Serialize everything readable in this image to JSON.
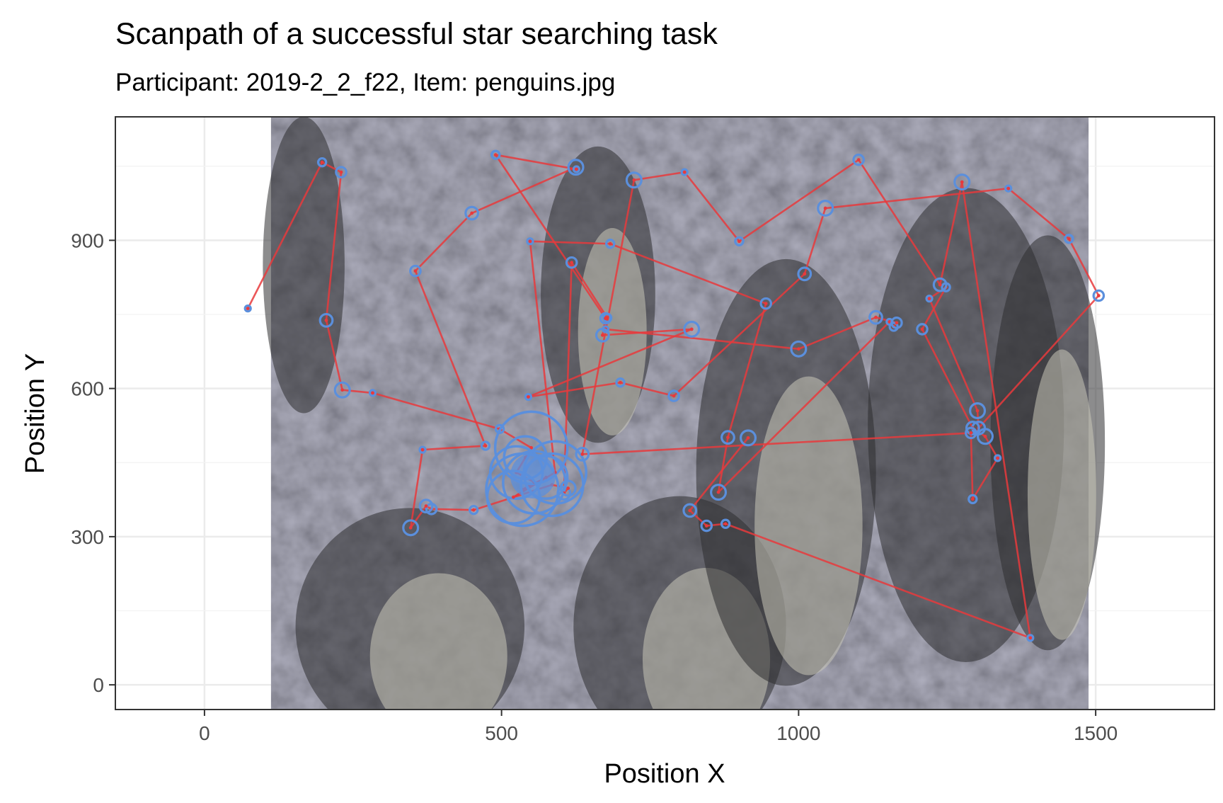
{
  "chart_data": {
    "type": "scatter",
    "title": "Scanpath of a successful star searching task",
    "subtitle": "Participant: 2019-2_2_f22, Item: penguins.jpg",
    "xlabel": "Position X",
    "ylabel": "Position Y",
    "xlim": [
      -150,
      1700
    ],
    "ylim": [
      -50,
      1150
    ],
    "x_ticks": [
      0,
      500,
      1000,
      1500
    ],
    "y_ticks": [
      0,
      300,
      600,
      900
    ],
    "x_tick_labels": [
      "0",
      "500",
      "1000",
      "1500"
    ],
    "y_tick_labels": [
      "0",
      "300",
      "600",
      "900"
    ],
    "grid": true,
    "legend": "none",
    "background_image": {
      "description_name": "penguins",
      "x_range": [
        112,
        1488
      ],
      "y_range": [
        -50,
        1150
      ]
    },
    "colors": {
      "path": "#e8393c",
      "fixation": "#5b8fdc",
      "image_tone": "#7a7a7a"
    },
    "series": [
      {
        "points": [
          {
            "x": 73,
            "y": 762
          },
          {
            "x": 198,
            "y": 1058
          },
          {
            "x": 230,
            "y": 1038
          },
          {
            "x": 205,
            "y": 738
          },
          {
            "x": 232,
            "y": 597
          },
          {
            "x": 283,
            "y": 591
          },
          {
            "x": 497,
            "y": 518
          },
          {
            "x": 550,
            "y": 480
          },
          {
            "x": 540,
            "y": 460
          },
          {
            "x": 525,
            "y": 430
          },
          {
            "x": 555,
            "y": 410
          },
          {
            "x": 535,
            "y": 395
          },
          {
            "x": 575,
            "y": 420
          },
          {
            "x": 520,
            "y": 380
          },
          {
            "x": 590,
            "y": 430
          },
          {
            "x": 548,
            "y": 898
          },
          {
            "x": 683,
            "y": 893
          },
          {
            "x": 945,
            "y": 772
          },
          {
            "x": 881,
            "y": 501
          },
          {
            "x": 865,
            "y": 390
          },
          {
            "x": 1153,
            "y": 735
          },
          {
            "x": 1160,
            "y": 725
          },
          {
            "x": 1165,
            "y": 733
          },
          {
            "x": 1130,
            "y": 744
          },
          {
            "x": 1000,
            "y": 680
          },
          {
            "x": 675,
            "y": 720
          },
          {
            "x": 678,
            "y": 743
          },
          {
            "x": 618,
            "y": 855
          },
          {
            "x": 605,
            "y": 388
          },
          {
            "x": 612,
            "y": 398
          },
          {
            "x": 585,
            "y": 405
          },
          {
            "x": 453,
            "y": 354
          },
          {
            "x": 382,
            "y": 356
          },
          {
            "x": 373,
            "y": 362
          },
          {
            "x": 347,
            "y": 318
          },
          {
            "x": 367,
            "y": 476
          },
          {
            "x": 473,
            "y": 484
          },
          {
            "x": 355,
            "y": 838
          },
          {
            "x": 450,
            "y": 955
          },
          {
            "x": 625,
            "y": 1048
          },
          {
            "x": 626,
            "y": 1044
          },
          {
            "x": 490,
            "y": 1073
          },
          {
            "x": 675,
            "y": 742
          },
          {
            "x": 670,
            "y": 708
          },
          {
            "x": 820,
            "y": 720
          },
          {
            "x": 545,
            "y": 583
          },
          {
            "x": 700,
            "y": 612
          },
          {
            "x": 790,
            "y": 585
          },
          {
            "x": 1010,
            "y": 832
          },
          {
            "x": 1045,
            "y": 965
          },
          {
            "x": 1353,
            "y": 1005
          },
          {
            "x": 1455,
            "y": 903
          },
          {
            "x": 1505,
            "y": 788
          },
          {
            "x": 1303,
            "y": 520
          },
          {
            "x": 1301,
            "y": 555
          },
          {
            "x": 1220,
            "y": 782
          },
          {
            "x": 1248,
            "y": 805
          },
          {
            "x": 1208,
            "y": 720
          },
          {
            "x": 1293,
            "y": 520
          },
          {
            "x": 1314,
            "y": 503
          },
          {
            "x": 1335,
            "y": 459
          },
          {
            "x": 1293,
            "y": 376
          },
          {
            "x": 1290,
            "y": 510
          },
          {
            "x": 636,
            "y": 467
          },
          {
            "x": 723,
            "y": 1022
          },
          {
            "x": 808,
            "y": 1038
          },
          {
            "x": 900,
            "y": 898
          },
          {
            "x": 1101,
            "y": 1063
          },
          {
            "x": 1238,
            "y": 810
          },
          {
            "x": 1275,
            "y": 1018
          },
          {
            "x": 1390,
            "y": 95
          },
          {
            "x": 877,
            "y": 326
          },
          {
            "x": 845,
            "y": 322
          },
          {
            "x": 817,
            "y": 353
          },
          {
            "x": 915,
            "y": 500
          }
        ]
      }
    ]
  }
}
